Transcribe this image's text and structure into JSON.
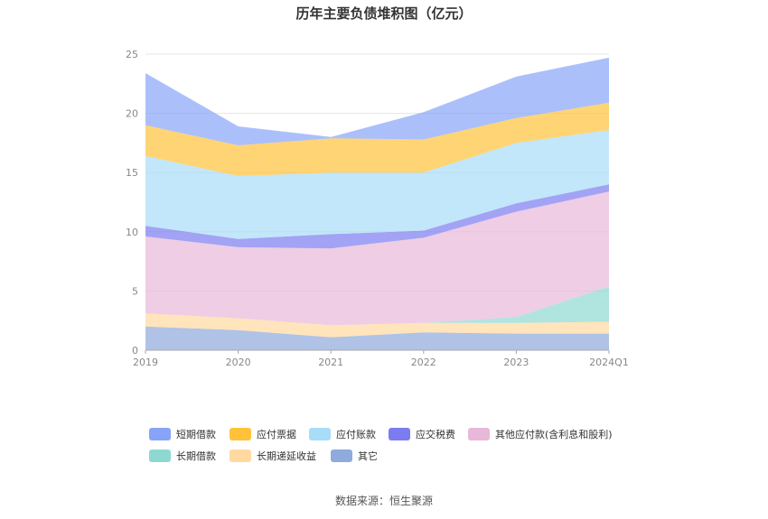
{
  "chart_data": {
    "type": "area",
    "stacked": true,
    "title": "历年主要负债堆积图（亿元）",
    "source": "数据来源：恒生聚源",
    "categories": [
      "2019",
      "2020",
      "2021",
      "2022",
      "2023",
      "2024Q1"
    ],
    "ylim": [
      0,
      25
    ],
    "yticks": [
      "0",
      "5",
      "10",
      "15",
      "20",
      "25"
    ],
    "grid": true,
    "legend_position": "bottom",
    "series": [
      {
        "name": "其它",
        "color": "#8faadc",
        "values": [
          2.0,
          1.7,
          1.1,
          1.5,
          1.4,
          1.4
        ]
      },
      {
        "name": "长期递延收益",
        "color": "#ffd9a0",
        "values": [
          1.1,
          1.0,
          1.0,
          0.8,
          0.9,
          1.0
        ]
      },
      {
        "name": "长期借款",
        "color": "#8ed8d2",
        "values": [
          0.0,
          0.0,
          0.0,
          0.0,
          0.5,
          3.0
        ]
      },
      {
        "name": "其他应付款(含利息和股利)",
        "color": "#e8b8d8",
        "values": [
          6.5,
          6.0,
          6.5,
          7.2,
          8.9,
          8.0
        ]
      },
      {
        "name": "应交税费",
        "color": "#7b7cf0",
        "values": [
          0.9,
          0.7,
          1.2,
          0.6,
          0.7,
          0.6
        ]
      },
      {
        "name": "应付账款",
        "color": "#a8dcf8",
        "values": [
          5.9,
          5.3,
          5.2,
          4.9,
          5.1,
          4.6
        ]
      },
      {
        "name": "应付票据",
        "color": "#ffc23a",
        "values": [
          2.6,
          2.6,
          2.9,
          2.8,
          2.1,
          2.3
        ]
      },
      {
        "name": "短期借款",
        "color": "#88a4f8",
        "values": [
          4.4,
          1.6,
          0.1,
          2.3,
          3.5,
          3.8
        ]
      }
    ],
    "legend_order": [
      "短期借款",
      "应付票据",
      "应付账款",
      "应交税费",
      "其他应付款(含利息和股利)",
      "长期借款",
      "长期递延收益",
      "其它"
    ]
  }
}
